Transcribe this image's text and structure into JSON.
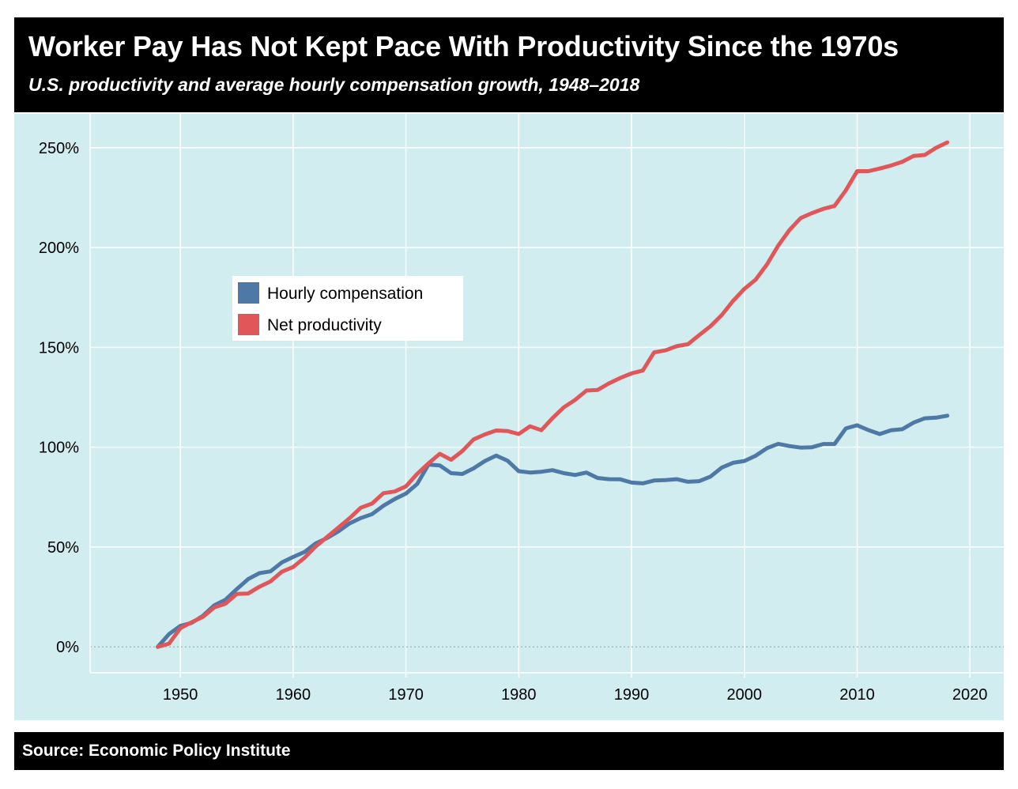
{
  "header": {
    "title": "Worker Pay Has Not Kept Pace With Productivity Since the 1970s",
    "subtitle": "U.S. productivity and average hourly compensation growth, 1948–2018"
  },
  "footer": {
    "source": "Source: Economic Policy Institute"
  },
  "colors": {
    "header_bg": "#000000",
    "plot_bg": "#d1edf0",
    "compensation": "#4e79a7",
    "productivity": "#e15759",
    "grid": "#ffffff"
  },
  "chart_data": {
    "type": "line",
    "title": "Worker Pay Has Not Kept Pace With Productivity Since the 1970s",
    "subtitle": "U.S. productivity and average hourly compensation growth, 1948–2018",
    "xlabel": "",
    "ylabel": "",
    "xlim": [
      1942,
      2023
    ],
    "ylim": [
      -13,
      267
    ],
    "x_ticks": [
      1950,
      1960,
      1970,
      1980,
      1990,
      2000,
      2010,
      2020
    ],
    "x_tick_labels": [
      "1950",
      "1960",
      "1970",
      "1980",
      "1990",
      "2000",
      "2010",
      "2020"
    ],
    "y_ticks": [
      0,
      50,
      100,
      150,
      200,
      250
    ],
    "y_tick_labels": [
      "0%",
      "50%",
      "100%",
      "150%",
      "200%",
      "250%"
    ],
    "grid": true,
    "legend_position": "upper-left",
    "x": [
      1948,
      1949,
      1950,
      1951,
      1952,
      1953,
      1954,
      1955,
      1956,
      1957,
      1958,
      1959,
      1960,
      1961,
      1962,
      1963,
      1964,
      1965,
      1966,
      1967,
      1968,
      1969,
      1970,
      1971,
      1972,
      1973,
      1974,
      1975,
      1976,
      1977,
      1978,
      1979,
      1980,
      1981,
      1982,
      1983,
      1984,
      1985,
      1986,
      1987,
      1988,
      1989,
      1990,
      1991,
      1992,
      1993,
      1994,
      1995,
      1996,
      1997,
      1998,
      1999,
      2000,
      2001,
      2002,
      2003,
      2004,
      2005,
      2006,
      2007,
      2008,
      2009,
      2010,
      2011,
      2012,
      2013,
      2014,
      2015,
      2016,
      2017,
      2018
    ],
    "series": [
      {
        "name": "Hourly compensation",
        "color": "#4e79a7",
        "values": [
          0,
          6.4,
          10.5,
          12.0,
          15.5,
          20.8,
          23.6,
          28.9,
          33.9,
          36.9,
          37.8,
          42.3,
          45.0,
          47.5,
          51.8,
          54.5,
          57.8,
          61.8,
          64.5,
          66.5,
          70.7,
          74.0,
          76.8,
          81.6,
          91.3,
          90.9,
          87.0,
          86.6,
          89.4,
          93.1,
          95.8,
          93.3,
          88.0,
          87.3,
          87.7,
          88.5,
          87.0,
          86.1,
          87.3,
          84.6,
          84.0,
          83.9,
          82.3,
          81.9,
          83.3,
          83.5,
          84.0,
          82.7,
          83.0,
          85.3,
          89.8,
          92.2,
          93.1,
          95.7,
          99.5,
          101.7,
          100.6,
          99.8,
          100.0,
          101.6,
          101.6,
          109.4,
          111.0,
          108.6,
          106.6,
          108.5,
          109.0,
          112.3,
          114.5,
          114.8,
          115.8
        ]
      },
      {
        "name": "Net productivity",
        "color": "#e15759",
        "values": [
          0,
          1.6,
          9.3,
          12.3,
          15.0,
          19.7,
          21.6,
          26.5,
          26.7,
          30.1,
          32.8,
          37.6,
          40.0,
          44.6,
          50.3,
          55.0,
          59.7,
          64.4,
          69.7,
          71.8,
          77.0,
          77.8,
          80.4,
          86.7,
          91.9,
          96.7,
          93.7,
          98.1,
          103.9,
          106.4,
          108.4,
          108.1,
          106.6,
          110.5,
          108.5,
          114.6,
          120.0,
          123.7,
          128.4,
          128.7,
          132.0,
          134.7,
          137.0,
          138.4,
          147.5,
          148.5,
          150.6,
          151.6,
          156.2,
          160.6,
          166.2,
          173.3,
          179.3,
          183.9,
          191.5,
          201.0,
          208.8,
          214.8,
          217.3,
          219.4,
          220.9,
          228.7,
          238.3,
          238.3,
          239.6,
          241.1,
          243.0,
          245.9,
          246.4,
          250.0,
          252.7
        ]
      }
    ]
  }
}
